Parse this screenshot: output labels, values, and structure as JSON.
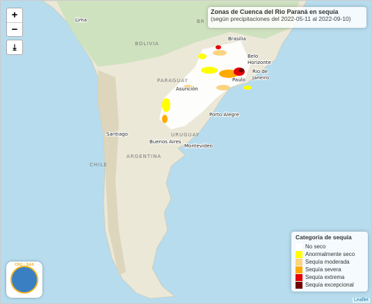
{
  "controls": {
    "zoom_in": "+",
    "zoom_out": "−"
  },
  "title": "Zonas de Cuenca del Rio Paraná en sequía",
  "subtitle": "(según precipitaciones del 2022-05-11 al 2022-09-10)",
  "places": [
    "Lima",
    "Brasilia",
    "Belo",
    "Horizonte",
    "Rio de",
    "Janeiro",
    "Paulo",
    "Asunción",
    "Porto Alegre",
    "Santiago",
    "Buenos Aires",
    "Montevideo",
    "BOLIVIA",
    "PARAGUAY",
    "URUGUAY",
    "ARGENTINA",
    "CHILE",
    "BR"
  ],
  "legend": {
    "title": "Categoria de sequía",
    "items": [
      {
        "label": "No seco",
        "color": "#ffffff"
      },
      {
        "label": "Anormalmente seco",
        "color": "#ffff00"
      },
      {
        "label": "Sequía moderada",
        "color": "#fcd37f"
      },
      {
        "label": "Sequía severa",
        "color": "#ffaa00"
      },
      {
        "label": "Sequía extrema",
        "color": "#e60000"
      },
      {
        "label": "Sequía excepcional",
        "color": "#730000"
      }
    ]
  },
  "logo": "CRC - SAS",
  "attribution": "Leaflet"
}
